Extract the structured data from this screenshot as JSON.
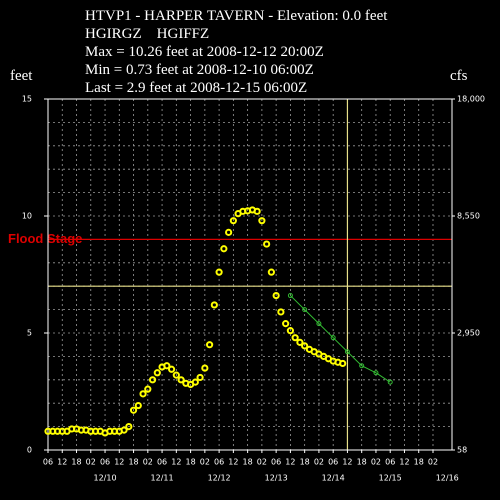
{
  "chart_data": {
    "type": "hydrograph",
    "title": "HTVP1 - HARPER TAVERN - Elevation: 0.0 feet",
    "subtitle": "HGIRGZ    HGIFFZ",
    "annotations": [
      "Max = 10.26 feet at 2008-12-12 20:00Z",
      "Min = 0.73 feet at 2008-12-10 06:00Z",
      "Last = 2.9 feet at 2008-12-15 06:00Z"
    ],
    "ylabel": "feet",
    "y2label": "cfs",
    "ylim": [
      0,
      15
    ],
    "yticks": [
      0,
      5,
      10,
      15
    ],
    "ygrid": [
      1,
      2,
      3,
      4,
      5,
      6,
      7,
      8,
      9,
      10,
      11,
      12,
      13,
      14
    ],
    "y2lim": [
      58,
      18000
    ],
    "y2ticks": [
      58,
      {
        "value": 2950,
        "label": "2,950"
      },
      {
        "value": 8550,
        "label": "8,550"
      },
      {
        "value": 18000,
        "label": "18,000"
      }
    ],
    "xlim": [
      0,
      170
    ],
    "xticks": [
      {
        "value": 0,
        "label": "06"
      },
      {
        "value": 6,
        "label": "12"
      },
      {
        "value": 12,
        "label": "18"
      },
      {
        "value": 18,
        "label": "02"
      },
      {
        "value": 24,
        "label": "06"
      },
      {
        "value": 30,
        "label": "12"
      },
      {
        "value": 36,
        "label": "18"
      },
      {
        "value": 42,
        "label": "02"
      },
      {
        "value": 48,
        "label": "06"
      },
      {
        "value": 54,
        "label": "12"
      },
      {
        "value": 60,
        "label": "18"
      },
      {
        "value": 66,
        "label": "02"
      },
      {
        "value": 72,
        "label": "06"
      },
      {
        "value": 78,
        "label": "12"
      },
      {
        "value": 84,
        "label": "18"
      },
      {
        "value": 90,
        "label": "02"
      },
      {
        "value": 96,
        "label": "06"
      },
      {
        "value": 102,
        "label": "12"
      },
      {
        "value": 108,
        "label": "18"
      },
      {
        "value": 114,
        "label": "02"
      },
      {
        "value": 120,
        "label": "06"
      },
      {
        "value": 126,
        "label": "12"
      },
      {
        "value": 132,
        "label": "18"
      },
      {
        "value": 138,
        "label": "02"
      },
      {
        "value": 144,
        "label": "06"
      },
      {
        "value": 150,
        "label": "12"
      },
      {
        "value": 156,
        "label": "18"
      },
      {
        "value": 162,
        "label": "02"
      }
    ],
    "xdate_labels": [
      {
        "value": 24,
        "label": "12/10"
      },
      {
        "value": 48,
        "label": "12/11"
      },
      {
        "value": 72,
        "label": "12/12"
      },
      {
        "value": 96,
        "label": "12/13"
      },
      {
        "value": 120,
        "label": "12/14"
      },
      {
        "value": 144,
        "label": "12/15"
      },
      {
        "value": 168,
        "label": "12/16"
      }
    ],
    "grid": true,
    "flood_stage": {
      "value": 9,
      "label": "Flood Stage",
      "color": "#dd0000"
    },
    "action_stage": {
      "value": 7,
      "color": "#e8e08a"
    },
    "current_time": 126,
    "series": [
      {
        "color": "#ffff00",
        "marker": "circle",
        "x": [
          0,
          2,
          4,
          6,
          8,
          10,
          12,
          14,
          16,
          18,
          20,
          22,
          24,
          26,
          28,
          30,
          32,
          34,
          36,
          38,
          40,
          42,
          44,
          46,
          48,
          50,
          52,
          54,
          56,
          58,
          60,
          62,
          64,
          66,
          68,
          70,
          72,
          74,
          76,
          78,
          80,
          82,
          84,
          86,
          88,
          90,
          92,
          94,
          96,
          98,
          100,
          102,
          104,
          106,
          108,
          110,
          112,
          114,
          116,
          118,
          120,
          122,
          124
        ],
        "values": [
          0.8,
          0.8,
          0.8,
          0.8,
          0.8,
          0.9,
          0.9,
          0.85,
          0.85,
          0.8,
          0.8,
          0.8,
          0.73,
          0.8,
          0.8,
          0.8,
          0.85,
          1.0,
          1.7,
          1.9,
          2.4,
          2.6,
          3.0,
          3.3,
          3.55,
          3.6,
          3.45,
          3.2,
          3.0,
          2.85,
          2.8,
          2.9,
          3.1,
          3.5,
          4.5,
          6.2,
          7.6,
          8.6,
          9.3,
          9.8,
          10.1,
          10.2,
          10.22,
          10.26,
          10.2,
          9.8,
          8.8,
          7.6,
          6.6,
          5.9,
          5.4,
          5.1,
          4.8,
          4.6,
          4.45,
          4.3,
          4.2,
          4.1,
          4.0,
          3.9,
          3.8,
          3.75,
          3.7
        ]
      },
      {
        "color": "#33bb33",
        "marker": "line",
        "x": [
          102,
          108,
          114,
          120,
          126,
          132,
          138,
          144
        ],
        "values": [
          6.6,
          6.0,
          5.4,
          4.8,
          4.2,
          3.6,
          3.3,
          2.9
        ]
      }
    ]
  }
}
